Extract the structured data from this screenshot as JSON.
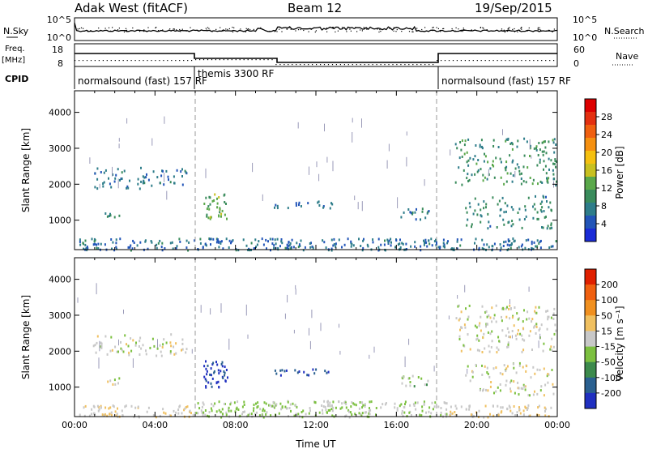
{
  "header": {
    "station": "Adak West (fitACF)",
    "beam": "Beam 12",
    "date": "19/Sep/2015"
  },
  "left_labels": {
    "nsky": "N.Sky",
    "freq": "Freq.",
    "mhz": "[MHz]",
    "cpid": "CPID"
  },
  "right_labels": {
    "nsearch": "N.Search",
    "nave": "Nave"
  },
  "noise_panel": {
    "left_ticks": [
      "10^5",
      "10^0"
    ],
    "right_ticks": [
      "10^5",
      "10^0"
    ]
  },
  "freq_panel": {
    "left_ticks": [
      "18",
      "8"
    ],
    "right_ticks": [
      "60",
      "0"
    ]
  },
  "cpid_labels": [
    {
      "text": "normalsound (fast) 157 RF",
      "t": 0.1
    },
    {
      "text": "themis 3300 RF",
      "t": 6.05
    },
    {
      "text": "normalsound (fast) 157 RF",
      "t": 18.1
    }
  ],
  "colorbars": {
    "power": {
      "label": "Power [dB]",
      "ticks": [
        "4",
        "8",
        "12",
        "16",
        "20",
        "24",
        "28"
      ],
      "colors": [
        "#1a2bd6",
        "#2255b8",
        "#2e7d8a",
        "#3a8c5c",
        "#5aa84a",
        "#c8c020",
        "#f5c010",
        "#f59010",
        "#f06010",
        "#e43010",
        "#dd0000"
      ]
    },
    "velocity": {
      "label": "Velocity [m s⁻¹]",
      "ticks": [
        "200",
        "100",
        "50",
        "15",
        "-15",
        "-50",
        "-100",
        "-200"
      ],
      "colors": [
        "#2030c0",
        "#2a6090",
        "#3c8a4c",
        "#7cc040",
        "#c8c8c8",
        "#f0c060",
        "#f09020",
        "#f06010",
        "#e02000"
      ]
    }
  },
  "chart_data": [
    {
      "type": "heatmap",
      "name": "power",
      "ylabel": "Slant Range [km]",
      "y_ticks": [
        "1000",
        "2000",
        "3000",
        "4000"
      ],
      "ylim": [
        180,
        4600
      ],
      "xlim": [
        0,
        24
      ],
      "clim": [
        0,
        30
      ],
      "regions": [
        {
          "x0": 0.2,
          "x1": 24,
          "y0": 190,
          "y1": 520,
          "level": 6,
          "density": 0.55
        },
        {
          "x0": 0.9,
          "x1": 5.6,
          "y0": 1900,
          "y1": 2500,
          "level": 6,
          "density": 0.3
        },
        {
          "x0": 1.3,
          "x1": 2.2,
          "y0": 1100,
          "y1": 1300,
          "level": 8,
          "density": 0.5
        },
        {
          "x0": 6.4,
          "x1": 7.6,
          "y0": 1050,
          "y1": 1750,
          "level": 12,
          "density": 0.55
        },
        {
          "x0": 9.8,
          "x1": 12.8,
          "y0": 1350,
          "y1": 1550,
          "level": 6,
          "density": 0.4
        },
        {
          "x0": 16.2,
          "x1": 17.6,
          "y0": 1050,
          "y1": 1350,
          "level": 7,
          "density": 0.5
        },
        {
          "x0": 18.9,
          "x1": 24,
          "y0": 2000,
          "y1": 3300,
          "level": 9,
          "density": 0.3
        },
        {
          "x0": 19.4,
          "x1": 23.8,
          "y0": 800,
          "y1": 1700,
          "level": 8,
          "density": 0.28
        }
      ]
    },
    {
      "type": "heatmap",
      "name": "velocity",
      "ylabel": "Slant Range [km]",
      "xlabel": "Time UT",
      "x_ticks": [
        "00:00",
        "04:00",
        "08:00",
        "12:00",
        "16:00",
        "20:00",
        "00:00"
      ],
      "y_ticks": [
        "1000",
        "2000",
        "3000",
        "4000"
      ],
      "ylim": [
        180,
        4600
      ],
      "xlim": [
        0,
        24
      ],
      "clim": [
        -250,
        250
      ],
      "regions": [
        {
          "x0": 0.2,
          "x1": 6.0,
          "y0": 190,
          "y1": 520,
          "level": 20,
          "density": 0.5
        },
        {
          "x0": 6.0,
          "x1": 18.5,
          "y0": 190,
          "y1": 640,
          "level": -30,
          "density": 0.6
        },
        {
          "x0": 18.5,
          "x1": 24,
          "y0": 190,
          "y1": 520,
          "level": 20,
          "density": 0.5
        },
        {
          "x0": 0.9,
          "x1": 5.6,
          "y0": 1900,
          "y1": 2500,
          "level": 0,
          "density": 0.3
        },
        {
          "x0": 1.3,
          "x1": 2.2,
          "y0": 1100,
          "y1": 1300,
          "level": 0,
          "density": 0.5
        },
        {
          "x0": 6.4,
          "x1": 7.6,
          "y0": 950,
          "y1": 1750,
          "level": -210,
          "density": 0.6
        },
        {
          "x0": 9.8,
          "x1": 12.8,
          "y0": 1350,
          "y1": 1550,
          "level": -200,
          "density": 0.4
        },
        {
          "x0": 16.2,
          "x1": 17.6,
          "y0": 1050,
          "y1": 1350,
          "level": -40,
          "density": 0.5
        },
        {
          "x0": 18.9,
          "x1": 24,
          "y0": 2000,
          "y1": 3300,
          "level": 0,
          "density": 0.3
        },
        {
          "x0": 19.4,
          "x1": 23.8,
          "y0": 800,
          "y1": 1700,
          "level": 0,
          "density": 0.28
        }
      ]
    }
  ]
}
